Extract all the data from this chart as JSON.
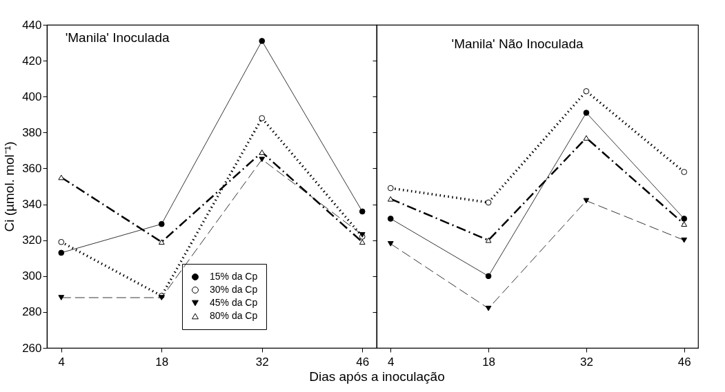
{
  "chart_data": [
    {
      "type": "line",
      "title": "'Manila' Inoculada",
      "xlabel": "Dias após a inoculação",
      "ylabel": "Ci (µmol. mol⁻¹)",
      "x": [
        4,
        18,
        32,
        46
      ],
      "xlim": [
        2,
        48
      ],
      "xticks": [
        4,
        18,
        32,
        46
      ],
      "ylim": [
        260,
        440
      ],
      "yticks": [
        260,
        280,
        300,
        320,
        340,
        360,
        380,
        400,
        420,
        440
      ],
      "grid": false,
      "legend": "bottom",
      "series": [
        {
          "name": "15% da Cp",
          "color": "#000000",
          "values": [
            313,
            329,
            431,
            336
          ],
          "line_style": "solid",
          "marker": "circle"
        },
        {
          "name": "30% da Cp",
          "color": "#000000",
          "values": [
            319,
            289,
            388,
            322
          ],
          "line_style": "dotted",
          "marker": "circle-open"
        },
        {
          "name": "45% da Cp",
          "color": "#000000",
          "values": [
            288,
            288,
            365,
            323
          ],
          "line_style": "dashed",
          "marker": "triangle-down"
        },
        {
          "name": "80% da Cp",
          "color": "#000000",
          "values": [
            355,
            319,
            369,
            319
          ],
          "line_style": "dashdot",
          "marker": "triangle-open"
        }
      ]
    },
    {
      "type": "line",
      "title": "'Manila' Não Inoculada",
      "x": [
        4,
        18,
        32,
        46
      ],
      "xlim": [
        2,
        48
      ],
      "xticks": [
        4,
        18,
        32,
        46
      ],
      "ylim": [
        260,
        440
      ],
      "yticks": [
        260,
        280,
        300,
        320,
        340,
        360,
        380,
        400,
        420,
        440
      ],
      "grid": false,
      "tick_labels": "x",
      "series": [
        {
          "color": "#000000",
          "values": [
            332,
            300,
            391,
            332
          ],
          "line_style": "solid",
          "marker": "circle"
        },
        {
          "color": "#000000",
          "values": [
            349,
            341,
            403,
            358
          ],
          "line_style": "dotted",
          "marker": "circle-open"
        },
        {
          "color": "#000000",
          "values": [
            318,
            282,
            342,
            320
          ],
          "line_style": "dashed",
          "marker": "triangle-down"
        },
        {
          "color": "#000000",
          "values": [
            343,
            320,
            377,
            329
          ],
          "line_style": "dashdot",
          "marker": "triangle-open"
        }
      ]
    }
  ]
}
